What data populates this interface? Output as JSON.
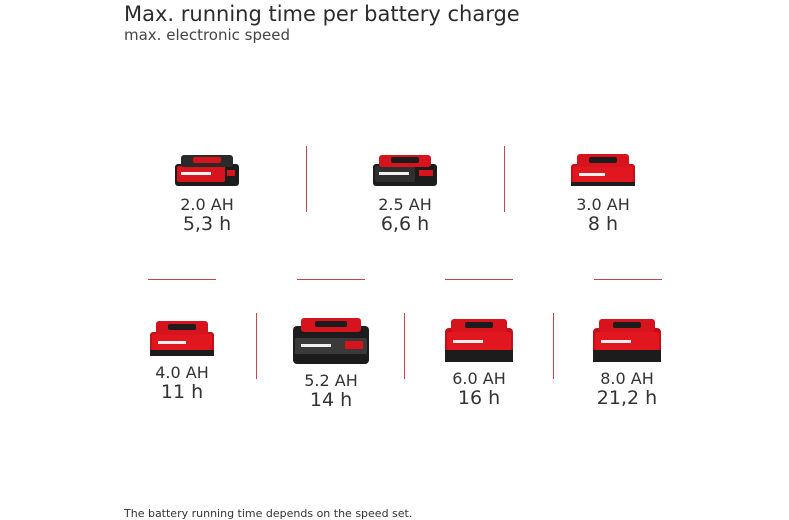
{
  "header": {
    "title": "Max. running time per battery charge",
    "subtitle": "max. electronic speed"
  },
  "colors": {
    "accent": "#c6434a",
    "battery_red": "#d7141d",
    "battery_black": "#1c1c1c"
  },
  "batteries": [
    {
      "capacity": "2.0 AH",
      "time": "5,3 h",
      "style": "black-red-small"
    },
    {
      "capacity": "2.5 AH",
      "time": "6,6 h",
      "style": "black-small"
    },
    {
      "capacity": "3.0 AH",
      "time": "8 h",
      "style": "red-small"
    },
    {
      "capacity": "4.0 AH",
      "time": "11 h",
      "style": "red-medium"
    },
    {
      "capacity": "5.2 AH",
      "time": "14 h",
      "style": "black-large"
    },
    {
      "capacity": "6.0 AH",
      "time": "16 h",
      "style": "red-large"
    },
    {
      "capacity": "8.0 AH",
      "time": "21,2 h",
      "style": "red-large"
    }
  ],
  "footnote": "The battery running time depends on the speed set."
}
